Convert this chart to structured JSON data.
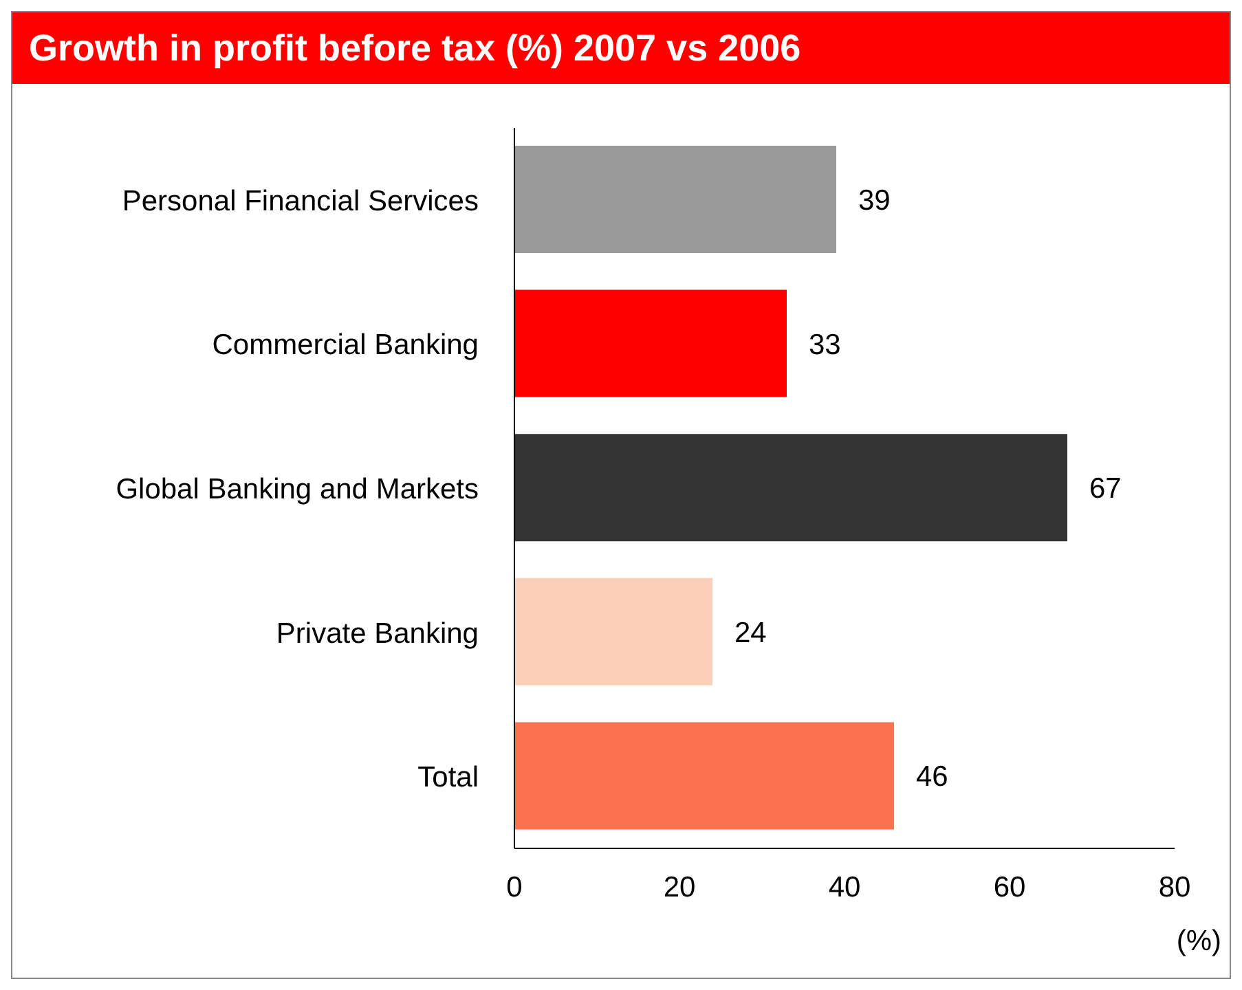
{
  "chart_data": {
    "type": "bar",
    "orientation": "horizontal",
    "title": "Growth in profit before tax (%) 2007 vs 2006",
    "xlabel": "(%)",
    "categories": [
      "Personal Financial Services",
      "Commercial Banking",
      "Global Banking and Markets",
      "Private Banking",
      "Total"
    ],
    "values": [
      39,
      33,
      67,
      24,
      46
    ],
    "colors": [
      "#999999",
      "#ff0000",
      "#333333",
      "#fcd0b8",
      "#fc7150"
    ],
    "xlim": [
      0,
      80
    ],
    "xticks": [
      0,
      20,
      40,
      60,
      80
    ],
    "data_labels": true,
    "grid": false
  }
}
